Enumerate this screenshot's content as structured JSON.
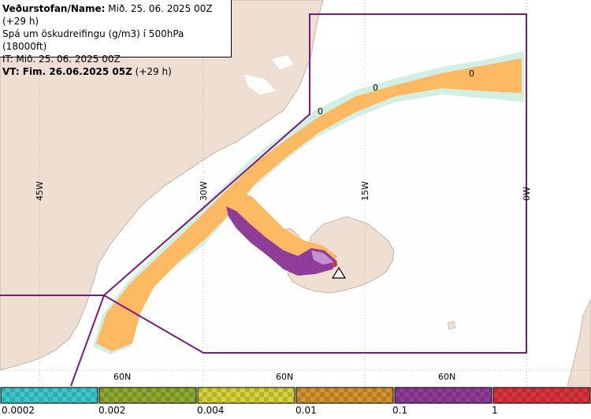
{
  "header": {
    "line1_label": "Veðurstofan/Name:",
    "line1_value": " Mið. 25. 06. 2025 00Z (+29 h)",
    "line2": "Spá um öskudreifingu (g/m3) í 500hPa (18000ft)",
    "line3": "IT: Mið. 25. 06. 2025 00Z",
    "line4_label": "VT: Fim. 26.06.2025 05Z",
    "line4_value": " (+29 h)"
  },
  "map": {
    "colors": {
      "sea": "#ffffff",
      "land": "#efdfd3",
      "plume_light": "#fdb862",
      "plume_edge": "#bfe8d8",
      "plume_edge2": "#f2e88a",
      "plume_core": "#8e3c98",
      "plume_core_light": "#c88fcf",
      "boundary": "#7a1a7a",
      "grid": "#888888"
    },
    "lon_labels": [
      "45W",
      "30W",
      "15W",
      "0W"
    ],
    "lat_labels": [
      "60N",
      "60N",
      "60N"
    ],
    "plume_markers": [
      "0",
      "0",
      "0"
    ],
    "volcano_icon": "volcano-triangle-icon"
  },
  "legend": {
    "swatch_colors": [
      "#3cc9c9",
      "#8cab30",
      "#d6d23a",
      "#d3932e",
      "#8e3c98",
      "#d9343a"
    ],
    "tick_labels": [
      "0.0002",
      "0.002",
      "0.004",
      "0.01",
      "0.1",
      "1"
    ]
  }
}
